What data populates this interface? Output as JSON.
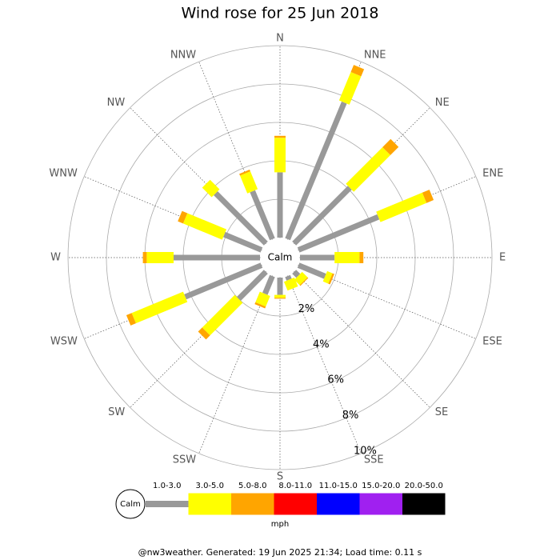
{
  "chart_data": {
    "type": "windrose",
    "title": "Wind rose for 25 Jun 2018",
    "categories": [
      "N",
      "NNE",
      "NE",
      "ENE",
      "E",
      "ESE",
      "SE",
      "SSE",
      "S",
      "SSW",
      "SW",
      "WSW",
      "W",
      "WNW",
      "NW",
      "NNW"
    ],
    "series": [
      {
        "name": "1.0-3.0",
        "color": "#999999",
        "values": [
          3.4,
          7.7,
          4.1,
          4.5,
          1.8,
          1.5,
          0.3,
          0.2,
          0.9,
          1.0,
          2.0,
          4.3,
          4.5,
          2.1,
          3.7,
          2.7
        ]
      },
      {
        "name": "3.0-5.0",
        "color": "#ffff00",
        "values": [
          1.8,
          1.6,
          2.7,
          2.6,
          1.3,
          0.3,
          0.4,
          0.5,
          0.15,
          0.6,
          2.4,
          2.9,
          1.4,
          2.2,
          0.7,
          1.0
        ]
      },
      {
        "name": "5.0-8.0",
        "color": "#ffa500",
        "values": [
          0.1,
          0.4,
          0.6,
          0.4,
          0.2,
          0.1,
          0.05,
          0,
          0.05,
          0.1,
          0.3,
          0.3,
          0.2,
          0.3,
          0,
          0.1
        ]
      },
      {
        "name": "8.0-11.0",
        "color": "#ff0000",
        "values": [
          0,
          0,
          0,
          0,
          0,
          0,
          0,
          0,
          0,
          0,
          0,
          0,
          0,
          0,
          0,
          0
        ]
      },
      {
        "name": "11.0-15.0",
        "color": "#0000ff",
        "values": [
          0,
          0,
          0,
          0,
          0,
          0,
          0,
          0,
          0,
          0,
          0,
          0,
          0,
          0,
          0,
          0
        ]
      },
      {
        "name": "15.0-20.0",
        "color": "#a020f0",
        "values": [
          0,
          0,
          0,
          0,
          0,
          0,
          0,
          0,
          0,
          0,
          0,
          0,
          0,
          0,
          0,
          0
        ]
      },
      {
        "name": "20.0-50.0",
        "color": "#000000",
        "values": [
          0,
          0,
          0,
          0,
          0,
          0,
          0,
          0,
          0,
          0,
          0,
          0,
          0,
          0,
          0,
          0
        ]
      }
    ],
    "rlim": [
      0,
      10
    ],
    "rticks": [
      {
        "value": 2,
        "label": "2%"
      },
      {
        "value": 4,
        "label": "4%"
      },
      {
        "value": 6,
        "label": "6%"
      },
      {
        "value": 8,
        "label": "8%"
      },
      {
        "value": 10,
        "label": "10%"
      }
    ],
    "calm_label": "Calm",
    "legend_unit": "mph",
    "footer": "@nw3weather. Generated: 19 Jun 2025 21:34; Load time: 0.11 s"
  }
}
